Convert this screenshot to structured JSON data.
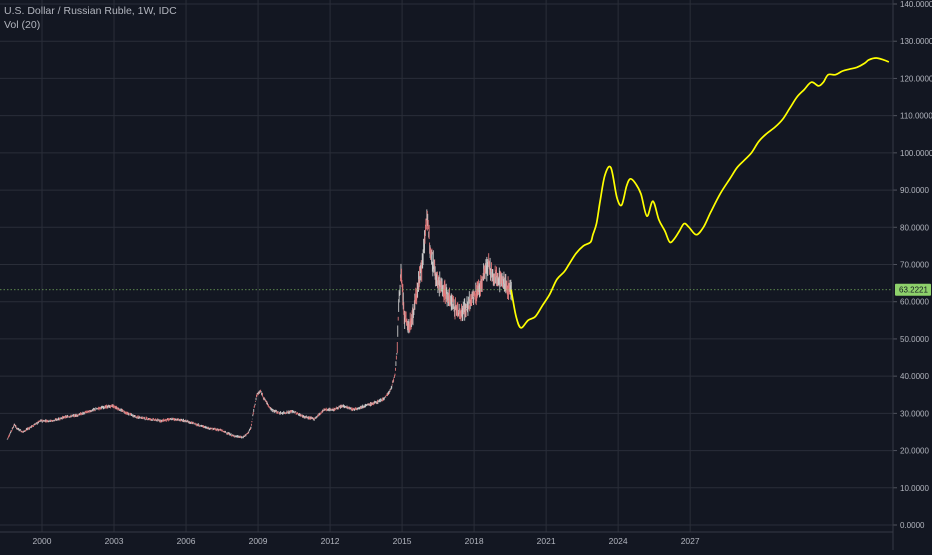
{
  "header": {
    "title": "U.S. Dollar / Russian Ruble, 1W, IDC",
    "indicator": "Vol (20)"
  },
  "colors": {
    "background": "#131722",
    "grid": "#2a2e39",
    "axis_text": "#b2b5be",
    "candle_up": "#c9c9c9",
    "candle_down": "#e0787a",
    "projection": "#ffff00",
    "price_tag": "#8ed16b"
  },
  "price_tag": "63.2221",
  "chart_data": {
    "type": "line",
    "title": "U.S. Dollar / Russian Ruble, 1W, IDC",
    "xlabel": "",
    "ylabel": "",
    "grid": true,
    "x_ticks": [
      "2000",
      "2003",
      "2006",
      "2009",
      "2012",
      "2015",
      "2018",
      "2021",
      "2024",
      "2027"
    ],
    "y_ticks": [
      "0.0000",
      "10.0000",
      "20.0000",
      "30.0000",
      "40.0000",
      "50.0000",
      "60.0000",
      "70.0000",
      "80.0000",
      "90.0000",
      "100.0000",
      "110.0000",
      "120.0000",
      "130.0000",
      "140.0000"
    ],
    "ylim": [
      0,
      140
    ],
    "xlim": [
      1998.3,
      2035.5
    ],
    "current_price": 63.2221,
    "series": [
      {
        "kind": "price",
        "x": [
          1998.6,
          1998.75,
          1998.9,
          1999.0,
          1999.25,
          1999.5,
          1999.75,
          2000.0,
          2000.5,
          2001.0,
          2001.5,
          2002.0,
          2002.5,
          2003.0,
          2003.3,
          2003.6,
          2004.0,
          2004.5,
          2005.0,
          2005.5,
          2006.0,
          2006.5,
          2007.0,
          2007.5,
          2008.0,
          2008.4,
          2008.6,
          2008.75,
          2008.9,
          2009.0,
          2009.15,
          2009.3,
          2009.6,
          2010.0,
          2010.5,
          2011.0,
          2011.4,
          2011.8,
          2012.2,
          2012.6,
          2013.0,
          2013.5,
          2014.0,
          2014.3,
          2014.55,
          2014.75,
          2014.85,
          2014.92,
          2015.0,
          2015.08,
          2015.15,
          2015.3,
          2015.45,
          2015.6,
          2015.75,
          2015.9,
          2016.05,
          2016.15,
          2016.3,
          2016.5,
          2016.7,
          2016.9,
          2017.1,
          2017.3,
          2017.5,
          2017.7,
          2017.9,
          2018.1,
          2018.3,
          2018.5,
          2018.65,
          2018.75,
          2018.85,
          2019.0,
          2019.15,
          2019.3,
          2019.45,
          2019.6
        ],
        "values": [
          23,
          25,
          27,
          26,
          25,
          26,
          27,
          28,
          28,
          29,
          29.5,
          30.5,
          31.5,
          32,
          31,
          30,
          29,
          28.5,
          28,
          28.5,
          28,
          27,
          26,
          25.5,
          24,
          23.5,
          24.5,
          26,
          32,
          35,
          36,
          34,
          31,
          30,
          30.5,
          29,
          28.5,
          31,
          31,
          32,
          31,
          32,
          33,
          34,
          36,
          40,
          48,
          60,
          68,
          62,
          56,
          53,
          55,
          60,
          66,
          70,
          82,
          79,
          72,
          66,
          64,
          62,
          60,
          58,
          57,
          58,
          60,
          62,
          64,
          68,
          70,
          68,
          66,
          67,
          66,
          65,
          64,
          63.5
        ]
      },
      {
        "kind": "projection",
        "x": [
          2019.6,
          2019.8,
          2020.0,
          2020.3,
          2020.6,
          2020.9,
          2021.2,
          2021.5,
          2021.8,
          2022.0,
          2022.3,
          2022.6,
          2022.9,
          2023.0,
          2023.15,
          2023.3,
          2023.5,
          2023.75,
          2024.0,
          2024.2,
          2024.4,
          2024.55,
          2024.75,
          2025.0,
          2025.25,
          2025.5,
          2025.75,
          2026.0,
          2026.2,
          2026.4,
          2026.6,
          2026.8,
          2027.0,
          2027.3,
          2027.6,
          2027.9,
          2028.3,
          2028.7,
          2029.0,
          2029.3,
          2029.6,
          2029.9,
          2030.2,
          2030.6,
          2030.9,
          2031.2,
          2031.5,
          2031.8,
          2032.1,
          2032.4,
          2032.6,
          2032.8,
          2033.1,
          2033.4,
          2033.7,
          2034.0,
          2034.3,
          2034.5,
          2034.8,
          2035.1,
          2035.3
        ],
        "values": [
          63,
          56,
          53,
          55,
          56,
          59,
          62,
          66,
          68,
          70,
          73,
          75,
          76,
          78,
          81,
          87,
          94,
          96,
          88,
          86,
          91,
          93,
          92,
          89,
          83,
          87,
          82,
          79,
          76,
          77,
          79,
          81,
          80,
          78,
          80,
          84,
          89,
          93,
          96,
          98,
          100,
          103,
          105,
          107,
          109,
          112,
          115,
          117,
          119,
          118,
          119,
          121,
          121,
          122,
          122.5,
          123,
          124,
          125,
          125.5,
          125,
          124.5
        ]
      }
    ]
  }
}
